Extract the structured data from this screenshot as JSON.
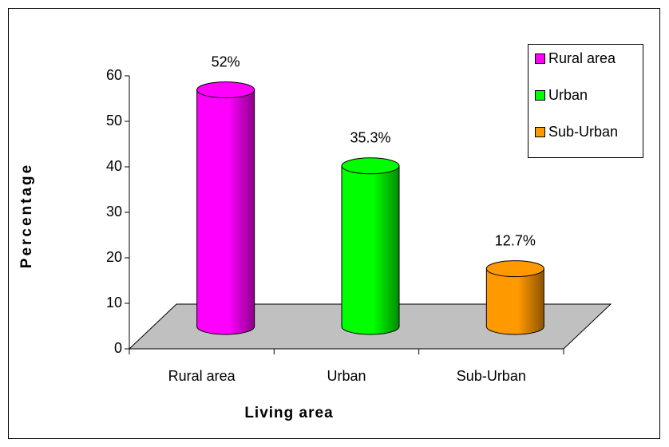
{
  "chart_data": {
    "type": "bar",
    "xlabel": "Living area",
    "ylabel": "Percentage",
    "categories": [
      "Rural area",
      "Urban",
      "Sub-Urban"
    ],
    "values": [
      52,
      35.3,
      12.7
    ],
    "value_labels": [
      "52%",
      "35.3%",
      "12.7%"
    ],
    "colors": [
      "#ff00ff",
      "#00ff00",
      "#ff9900"
    ],
    "ylim": [
      0,
      60
    ],
    "yticks": [
      0,
      10,
      20,
      30,
      40,
      50,
      60
    ],
    "legend": "top-right",
    "grid": false
  }
}
